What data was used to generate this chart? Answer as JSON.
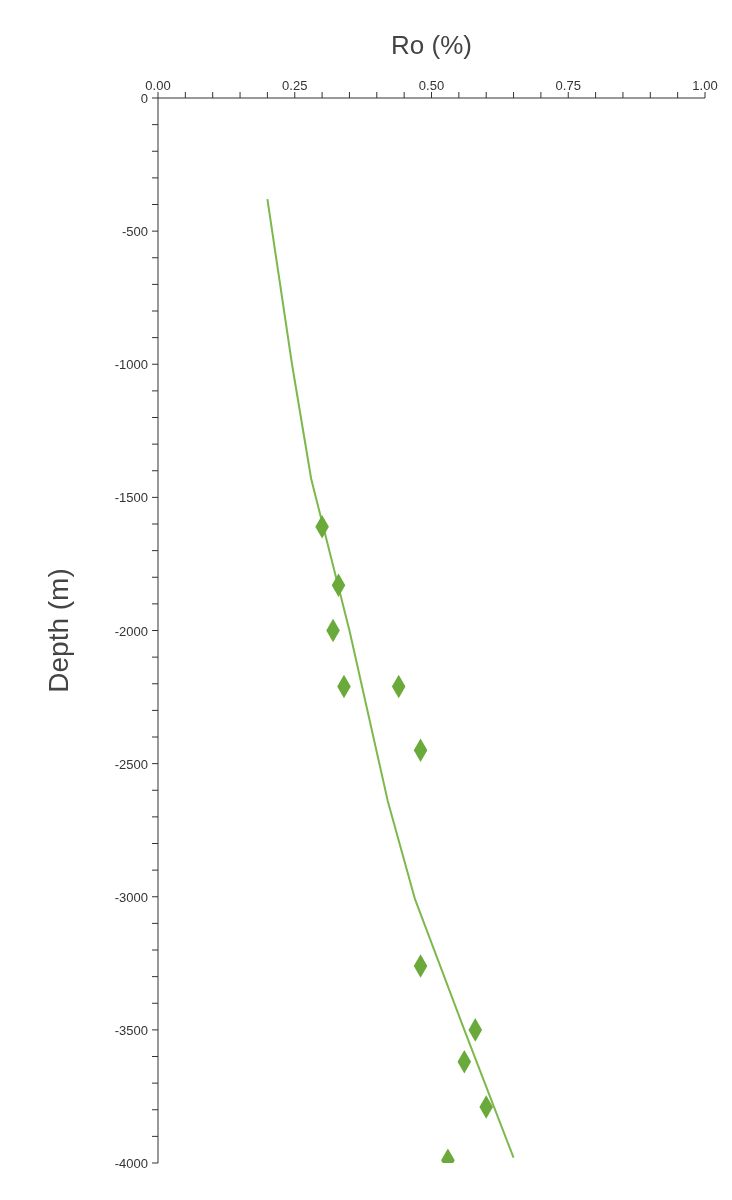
{
  "chart_data": {
    "type": "scatter",
    "xlabel": "Ro (%)",
    "ylabel": "Depth (m)",
    "xlim": [
      0,
      1
    ],
    "ylim": [
      -4000,
      0
    ],
    "xticks": [
      {
        "value": 0,
        "label": "0.00"
      },
      {
        "value": 0.05,
        "label": null
      },
      {
        "value": 0.1,
        "label": null
      },
      {
        "value": 0.15,
        "label": null
      },
      {
        "value": 0.2,
        "label": null
      },
      {
        "value": 0.25,
        "label": "0.25"
      },
      {
        "value": 0.3,
        "label": null
      },
      {
        "value": 0.35,
        "label": null
      },
      {
        "value": 0.4,
        "label": null
      },
      {
        "value": 0.45,
        "label": null
      },
      {
        "value": 0.5,
        "label": "0.50"
      },
      {
        "value": 0.55,
        "label": null
      },
      {
        "value": 0.6,
        "label": null
      },
      {
        "value": 0.65,
        "label": null
      },
      {
        "value": 0.7,
        "label": null
      },
      {
        "value": 0.75,
        "label": "0.75"
      },
      {
        "value": 0.8,
        "label": null
      },
      {
        "value": 0.85,
        "label": null
      },
      {
        "value": 0.9,
        "label": null
      },
      {
        "value": 0.95,
        "label": null
      },
      {
        "value": 1,
        "label": "1.00"
      }
    ],
    "yticks": [
      0,
      {
        "value": -100,
        "label": null
      },
      {
        "value": -200,
        "label": null
      },
      {
        "value": -300,
        "label": null
      },
      {
        "value": -400,
        "label": null
      },
      -500,
      {
        "value": -600,
        "label": null
      },
      {
        "value": -700,
        "label": null
      },
      {
        "value": -800,
        "label": null
      },
      {
        "value": -900,
        "label": null
      },
      -1000,
      {
        "value": -1100,
        "label": null
      },
      {
        "value": -1200,
        "label": null
      },
      {
        "value": -1300,
        "label": null
      },
      {
        "value": -1400,
        "label": null
      },
      -1500,
      {
        "value": -1600,
        "label": null
      },
      {
        "value": -1700,
        "label": null
      },
      {
        "value": -1800,
        "label": null
      },
      {
        "value": -1900,
        "label": null
      },
      -2000,
      {
        "value": -2100,
        "label": null
      },
      {
        "value": -2200,
        "label": null
      },
      {
        "value": -2300,
        "label": null
      },
      {
        "value": -2400,
        "label": null
      },
      -2500,
      {
        "value": -2600,
        "label": null
      },
      {
        "value": -2700,
        "label": null
      },
      {
        "value": -2800,
        "label": null
      },
      {
        "value": -2900,
        "label": null
      },
      -3000,
      {
        "value": -3100,
        "label": null
      },
      {
        "value": -3200,
        "label": null
      },
      {
        "value": -3300,
        "label": null
      },
      {
        "value": -3400,
        "label": null
      },
      -3500,
      {
        "value": -3600,
        "label": null
      },
      {
        "value": -3700,
        "label": null
      },
      {
        "value": -3800,
        "label": null
      },
      {
        "value": -3900,
        "label": null
      },
      -4000
    ],
    "marker": "diamond",
    "series": [
      {
        "color": "#6aaa3a",
        "x": [
          0.3,
          0.33,
          0.32,
          0.34,
          0.44,
          0.48,
          0.48,
          0.58,
          0.56,
          0.6,
          0.53
        ],
        "values": [
          -1610,
          -1830,
          -2000,
          -2210,
          -2210,
          -2450,
          -3260,
          -3500,
          -3620,
          -3790,
          -3990
        ]
      },
      {
        "type": "line",
        "color": "#7cb84c",
        "marker": "none",
        "line_style": "solid",
        "x": [
          0.2,
          0.245,
          0.28,
          0.35,
          0.42,
          0.47,
          0.56,
          0.65
        ],
        "values": [
          -380,
          -1000,
          -1430,
          -2000,
          -2640,
          -3010,
          -3500,
          -3980
        ]
      }
    ]
  }
}
